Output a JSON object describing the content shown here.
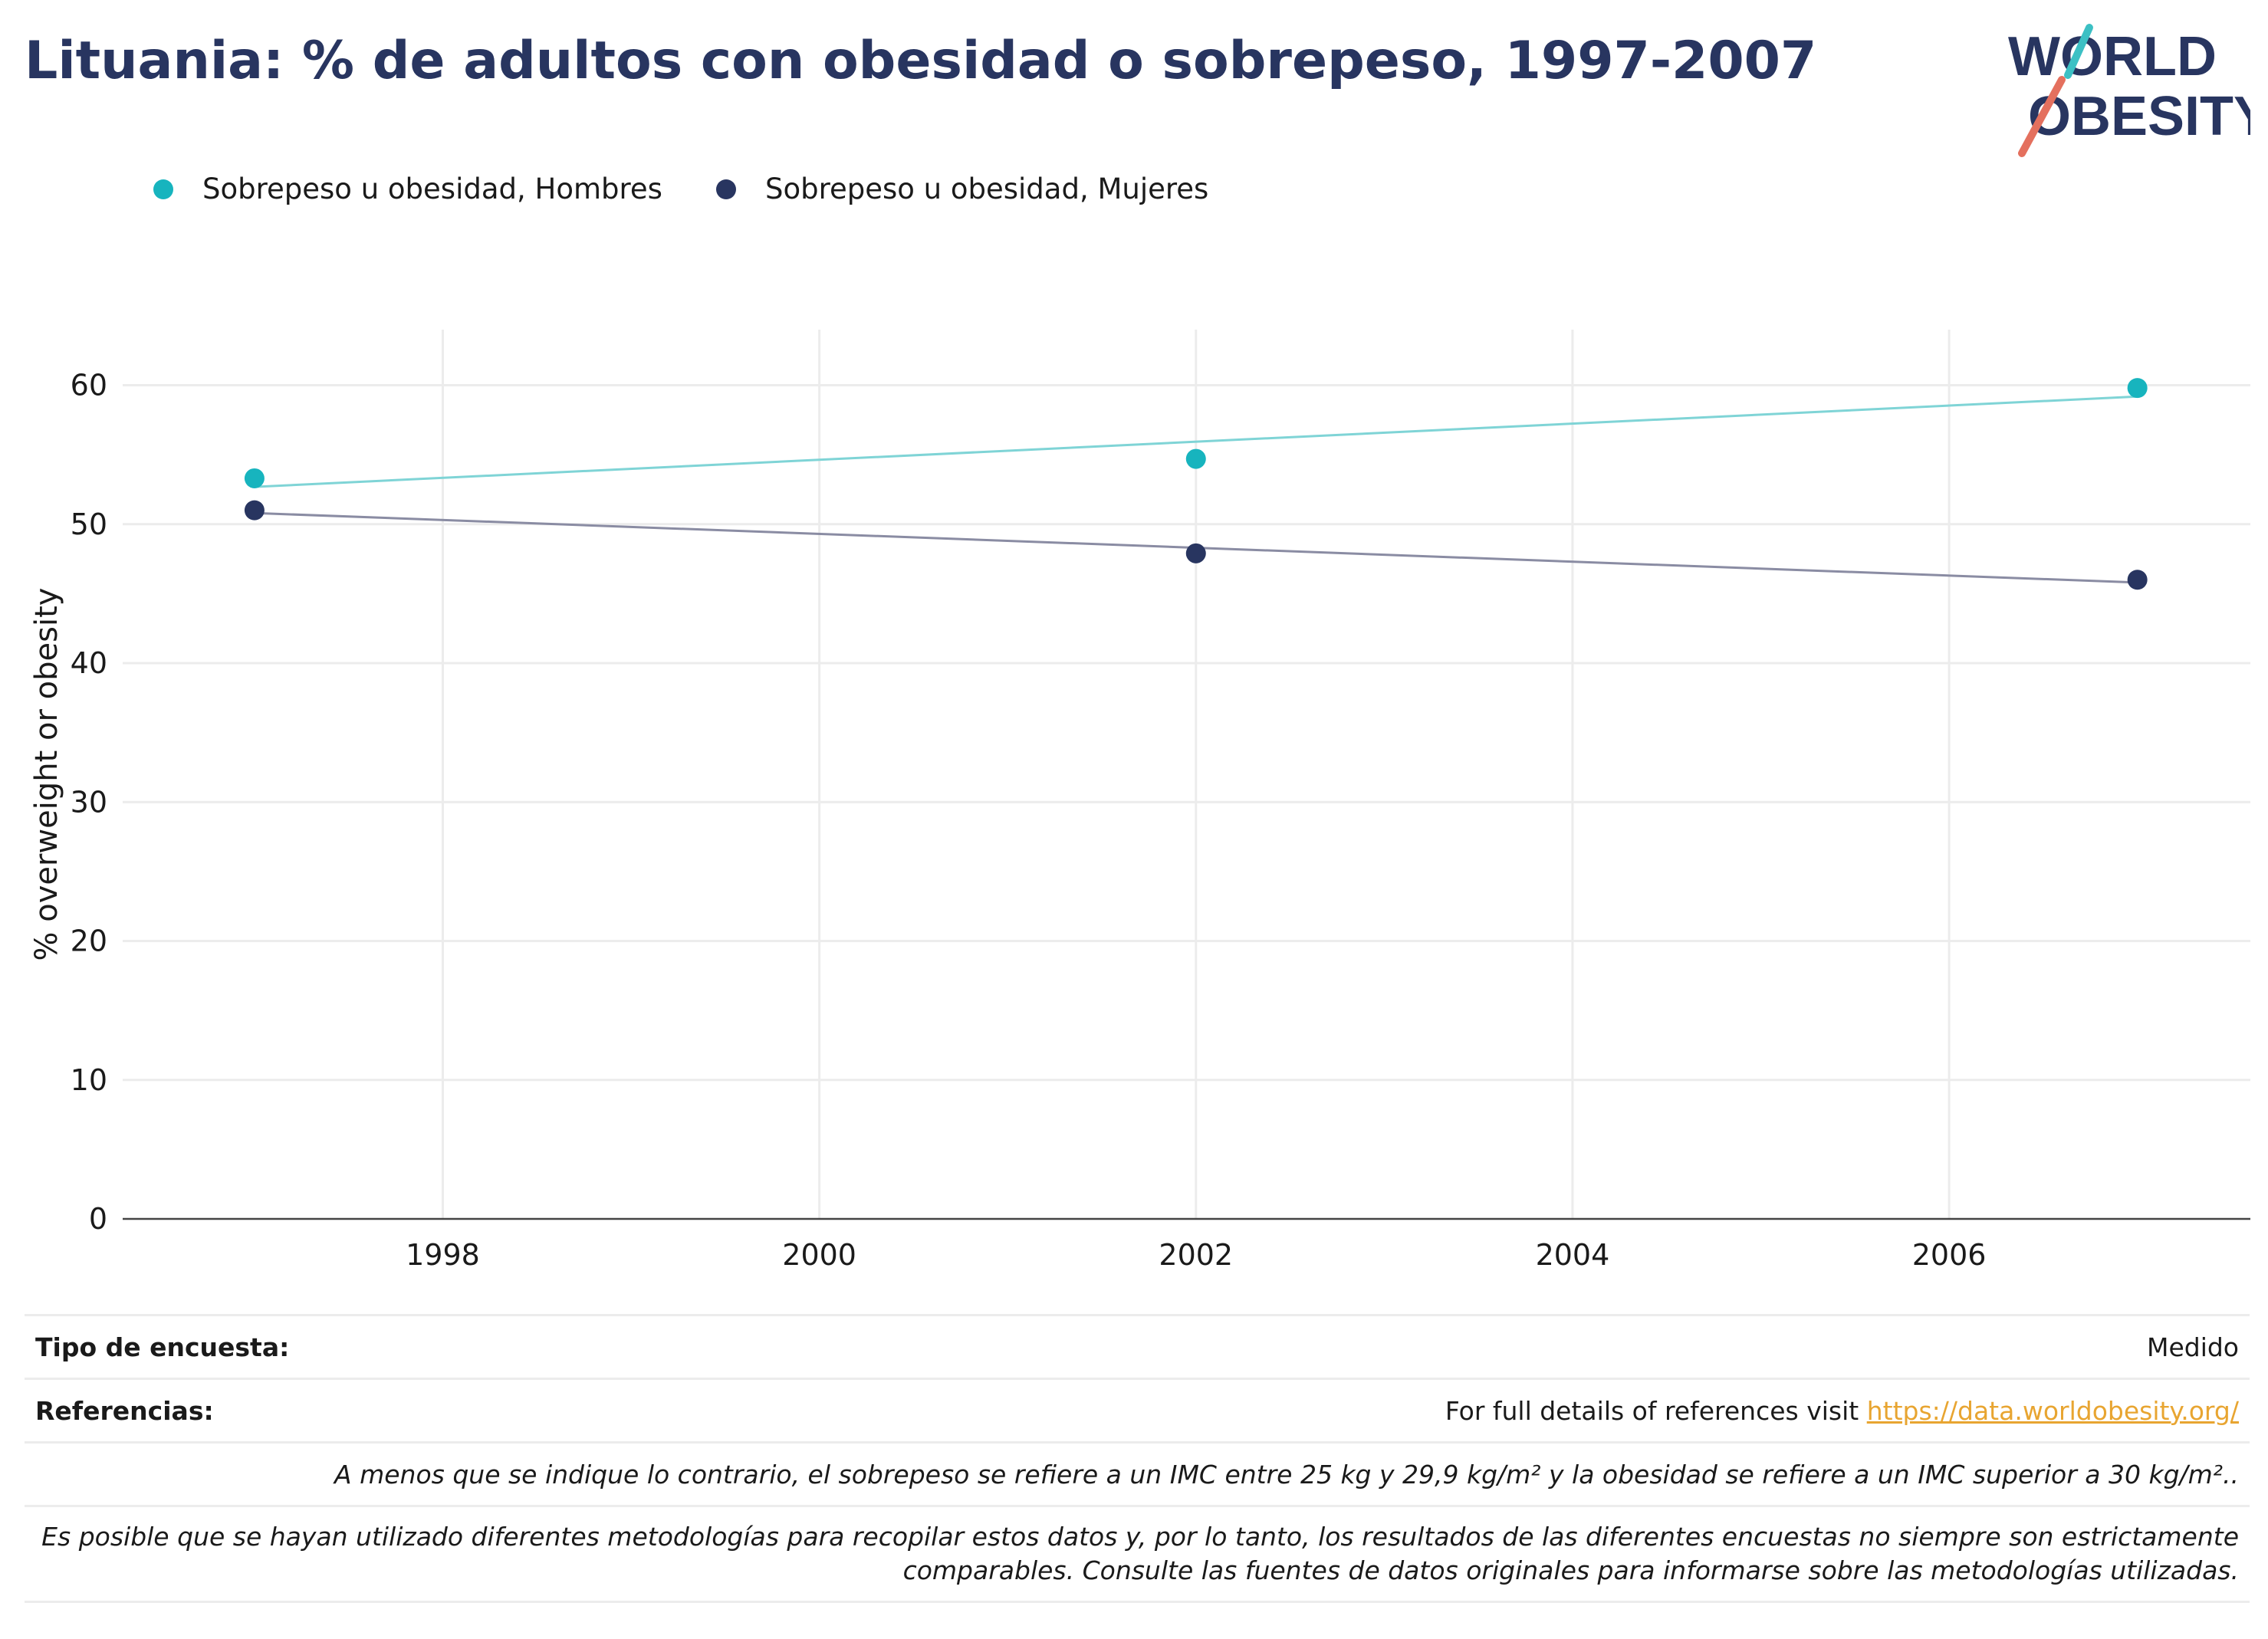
{
  "title": "Lituania: % de adultos con obesidad o sobrepeso, 1997-2007",
  "logo": {
    "line1": "WORLD",
    "line2": "OBESITY"
  },
  "colors": {
    "hombres": "#17b4be",
    "mujeres": "#283560",
    "trend_hombres": "#7fd4d6",
    "trend_mujeres": "#8a8ca3",
    "title": "#283560",
    "link": "#e8a531",
    "grid": "#ececec"
  },
  "chart_data": {
    "type": "scatter",
    "title": "Lituania: % de adultos con obesidad o sobrepeso, 1997-2007",
    "xlabel": "",
    "ylabel": "% overweight or obesity",
    "xlim": [
      1996.3,
      2007.6
    ],
    "ylim": [
      0,
      64
    ],
    "x_ticks": [
      1998,
      2000,
      2002,
      2004,
      2006
    ],
    "y_ticks": [
      0,
      10,
      20,
      30,
      40,
      50,
      60
    ],
    "grid": true,
    "legend_position": "top-left",
    "series": [
      {
        "name": "Sobrepeso u obesidad, Hombres",
        "color": "#17b4be",
        "trend_color": "#7fd4d6",
        "points": [
          {
            "x": 1997,
            "y": 53.3
          },
          {
            "x": 2002,
            "y": 54.7
          },
          {
            "x": 2007,
            "y": 59.8
          }
        ]
      },
      {
        "name": "Sobrepeso u obesidad, Mujeres",
        "color": "#283560",
        "trend_color": "#8a8ca3",
        "points": [
          {
            "x": 1997,
            "y": 51.0
          },
          {
            "x": 2002,
            "y": 47.9
          },
          {
            "x": 2007,
            "y": 46.0
          }
        ]
      }
    ]
  },
  "info": {
    "survey_type_label": "Tipo de encuesta:",
    "survey_type_value": "Medido",
    "references_label": "Referencias:",
    "references_text": "For full details of references visit ",
    "references_link": "https://data.worldobesity.org/",
    "note_bmi": "A menos que se indique lo contrario, el sobrepeso se refiere a un IMC entre 25 kg y 29,9 kg/m² y la obesidad se refiere a un IMC superior a 30 kg/m²..",
    "note_methods_1": "Es posible que se hayan utilizado diferentes metodologías para recopilar estos datos y, por lo tanto, los resultados de las diferentes encuestas no siempre son estrictamente",
    "note_methods_2": "comparables. Consulte las fuentes de datos originales para informarse sobre las metodologías utilizadas."
  }
}
